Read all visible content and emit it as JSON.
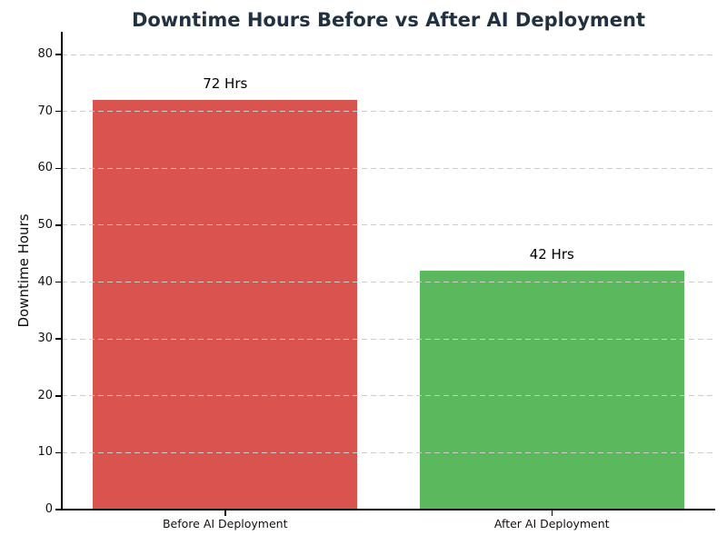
{
  "chart_data": {
    "type": "bar",
    "title": "Downtime Hours Before vs After AI Deployment",
    "xlabel": "",
    "ylabel": "Downtime Hours",
    "categories": [
      "Before AI Deployment",
      "After AI Deployment"
    ],
    "values": [
      72,
      42
    ],
    "value_labels": [
      "72 Hrs",
      "42 Hrs"
    ],
    "bar_colors": [
      "#d9534f",
      "#5cb85c"
    ],
    "yticks": [
      0,
      10,
      20,
      30,
      40,
      50,
      60,
      70,
      80
    ],
    "ylim": [
      0,
      84
    ],
    "grid": {
      "axis": "y",
      "style": "dashed",
      "color": "#cccccc"
    },
    "legend_position": "none",
    "background": "#ffffff"
  },
  "style": {
    "title_color": "#223142",
    "axis_color": "#000000",
    "tick_label_color": "#111111"
  }
}
